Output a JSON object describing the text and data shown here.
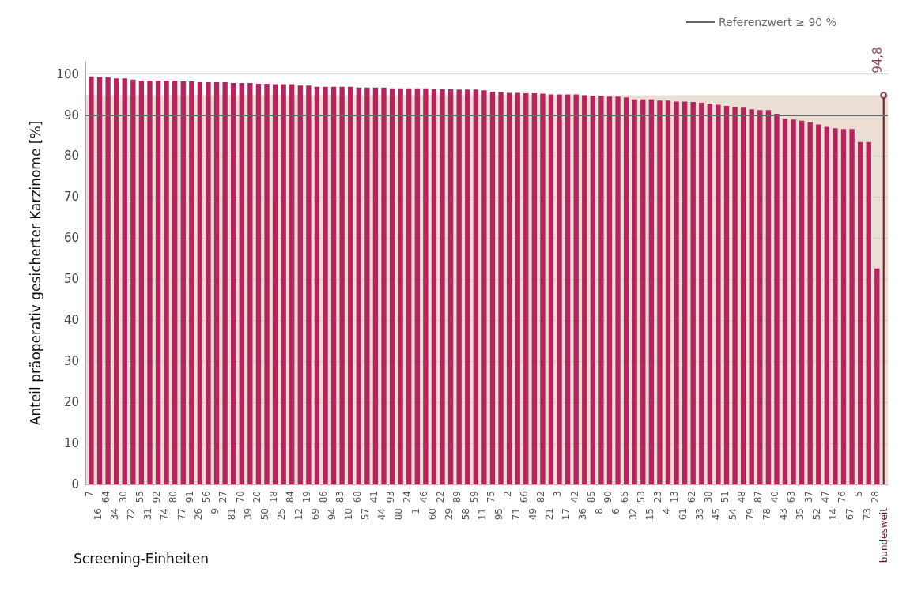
{
  "chart_data": {
    "type": "bar",
    "xlabel": "Screening-Einheiten",
    "ylabel": "Anteil präoperativ gesicherter Karzinome [%]",
    "categories": [
      "7",
      "16",
      "64",
      "34",
      "30",
      "72",
      "55",
      "31",
      "92",
      "74",
      "80",
      "77",
      "91",
      "26",
      "56",
      "9",
      "27",
      "81",
      "70",
      "39",
      "20",
      "50",
      "18",
      "25",
      "84",
      "12",
      "19",
      "69",
      "86",
      "94",
      "83",
      "10",
      "68",
      "57",
      "41",
      "44",
      "93",
      "88",
      "24",
      "1",
      "46",
      "60",
      "22",
      "29",
      "89",
      "58",
      "59",
      "11",
      "75",
      "95",
      "2",
      "71",
      "66",
      "49",
      "82",
      "21",
      "3",
      "17",
      "42",
      "36",
      "85",
      "8",
      "90",
      "6",
      "65",
      "32",
      "53",
      "15",
      "23",
      "4",
      "13",
      "61",
      "62",
      "33",
      "38",
      "45",
      "51",
      "54",
      "48",
      "79",
      "87",
      "78",
      "40",
      "43",
      "63",
      "35",
      "37",
      "52",
      "47",
      "14",
      "76",
      "67",
      "5",
      "73",
      "28",
      "bundesweit"
    ],
    "series": [
      {
        "color": "#b5245c",
        "values": [
          99.4,
          99.2,
          99.2,
          98.9,
          98.9,
          98.6,
          98.4,
          98.4,
          98.4,
          98.4,
          98.4,
          98.2,
          98.2,
          98.0,
          98.0,
          98.0,
          98.0,
          97.8,
          97.8,
          97.8,
          97.6,
          97.6,
          97.5,
          97.5,
          97.5,
          97.2,
          97.2,
          96.9,
          96.9,
          96.9,
          96.9,
          96.9,
          96.7,
          96.7,
          96.7,
          96.7,
          96.5,
          96.5,
          96.5,
          96.5,
          96.5,
          96.3,
          96.3,
          96.3,
          96.2,
          96.2,
          96.2,
          96.0,
          95.7,
          95.6,
          95.4,
          95.4,
          95.3,
          95.3,
          95.2,
          95.0,
          95.0,
          95.0,
          95.0,
          94.8,
          94.7,
          94.7,
          94.5,
          94.5,
          94.3,
          93.8,
          93.8,
          93.8,
          93.5,
          93.5,
          93.3,
          93.3,
          93.2,
          93.0,
          92.8,
          92.5,
          92.2,
          92.0,
          91.8,
          91.4,
          91.2,
          91.2,
          90.3,
          89.1,
          88.9,
          88.6,
          88.2,
          87.7,
          87.1,
          86.8,
          86.6,
          86.6,
          83.4,
          83.4,
          52.6,
          null
        ]
      },
      {
        "type": "lollipop",
        "color": "#6b1a26",
        "values": [
          null,
          null,
          null,
          null,
          null,
          null,
          null,
          null,
          null,
          null,
          null,
          null,
          null,
          null,
          null,
          null,
          null,
          null,
          null,
          null,
          null,
          null,
          null,
          null,
          null,
          null,
          null,
          null,
          null,
          null,
          null,
          null,
          null,
          null,
          null,
          null,
          null,
          null,
          null,
          null,
          null,
          null,
          null,
          null,
          null,
          null,
          null,
          null,
          null,
          null,
          null,
          null,
          null,
          null,
          null,
          null,
          null,
          null,
          null,
          null,
          null,
          null,
          null,
          null,
          null,
          null,
          null,
          null,
          null,
          null,
          null,
          null,
          null,
          null,
          null,
          null,
          null,
          null,
          null,
          null,
          null,
          null,
          null,
          null,
          null,
          null,
          null,
          null,
          null,
          null,
          null,
          null,
          null,
          null,
          null,
          94.8
        ],
        "value_labels": [
          null,
          null,
          null,
          null,
          null,
          null,
          null,
          null,
          null,
          null,
          null,
          null,
          null,
          null,
          null,
          null,
          null,
          null,
          null,
          null,
          null,
          null,
          null,
          null,
          null,
          null,
          null,
          null,
          null,
          null,
          null,
          null,
          null,
          null,
          null,
          null,
          null,
          null,
          null,
          null,
          null,
          null,
          null,
          null,
          null,
          null,
          null,
          null,
          null,
          null,
          null,
          null,
          null,
          null,
          null,
          null,
          null,
          null,
          null,
          null,
          null,
          null,
          null,
          null,
          null,
          null,
          null,
          null,
          null,
          null,
          null,
          null,
          null,
          null,
          null,
          null,
          null,
          null,
          null,
          null,
          null,
          null,
          null,
          null,
          null,
          null,
          null,
          null,
          null,
          null,
          null,
          null,
          null,
          null,
          null,
          "94,8"
        ]
      }
    ],
    "ylim": [
      0,
      103
    ],
    "yticks": [
      0,
      10,
      20,
      30,
      40,
      50,
      60,
      70,
      80,
      90,
      100
    ],
    "grid": "y",
    "legend": "top right",
    "ref_lines": [
      {
        "axis": "y",
        "value": 90,
        "label": "Referenzwert ≥ 90 %",
        "color": "#666666"
      }
    ],
    "bands": [
      {
        "axis": "y",
        "from": 0,
        "to": 94.8,
        "color": "#ebdfd5"
      }
    ]
  }
}
